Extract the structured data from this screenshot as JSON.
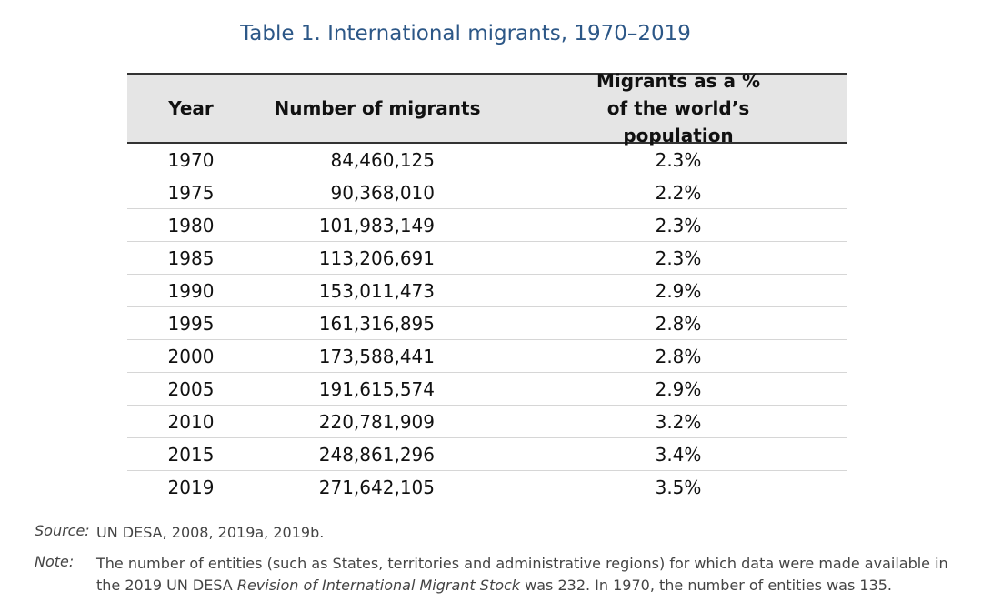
{
  "title": "Table 1. International migrants, 1970–2019",
  "table": {
    "header": [
      "Year",
      "Number of migrants",
      [
        "Migrants as a %",
        "of the world’s population"
      ]
    ],
    "rows": [
      [
        "1970",
        "84,460,125",
        "2.3%"
      ],
      [
        "1975",
        "90,368,010",
        "2.2%"
      ],
      [
        "1980",
        "101,983,149",
        "2.3%"
      ],
      [
        "1985",
        "113,206,691",
        "2.3%"
      ],
      [
        "1990",
        "153,011,473",
        "2.9%"
      ],
      [
        "1995",
        "161,316,895",
        "2.8%"
      ],
      [
        "2000",
        "173,588,441",
        "2.8%"
      ],
      [
        "2005",
        "191,615,574",
        "2.9%"
      ],
      [
        "2010",
        "220,781,909",
        "3.2%"
      ],
      [
        "2015",
        "248,861,296",
        "3.4%"
      ],
      [
        "2019",
        "271,642,105",
        "3.5%"
      ]
    ]
  },
  "source": {
    "label": "Source:",
    "text": "UN DESA, 2008, 2019a, 2019b."
  },
  "note": {
    "label": "Note:",
    "parts": [
      "The number of entities (such as States, territories and administrative regions) for which data were made available in the 2019 UN DESA ",
      "Revision of International Migrant Stock",
      " was 232. In 1970, the number of entities was 135."
    ]
  }
}
